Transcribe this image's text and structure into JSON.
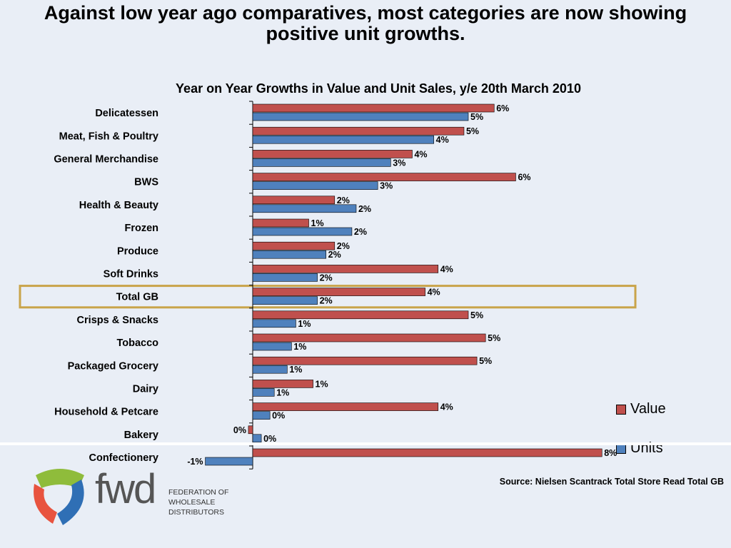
{
  "headline": {
    "line1": "Against low year ago comparatives, most categories are now showing",
    "line2": "positive unit growths."
  },
  "colors": {
    "value": "#c0504d",
    "units": "#4f81bd",
    "highlight": "#c9a44a",
    "background": "#e9eef6",
    "logo_green": "#8fbc3b",
    "logo_red": "#e8533f",
    "logo_blue": "#2f6fb5"
  },
  "chart_data": {
    "type": "bar",
    "orientation": "horizontal",
    "title": "Year on Year Growths in Value and Unit Sales, y/e 20th March 2010",
    "categories": [
      "Delicatessen",
      "Meat, Fish & Poultry",
      "General Merchandise",
      "BWS",
      "Health & Beauty",
      "Frozen",
      "Produce",
      "Soft Drinks",
      "Total GB",
      "Crisps & Snacks",
      "Tobacco",
      "Packaged Grocery",
      "Dairy",
      "Household & Petcare",
      "Bakery",
      "Confectionery"
    ],
    "series": [
      {
        "name": "Value",
        "values": [
          5.6,
          4.9,
          3.7,
          6.1,
          1.9,
          1.3,
          1.9,
          4.3,
          4.0,
          5.0,
          5.4,
          5.2,
          1.4,
          4.3,
          -0.1,
          8.1
        ],
        "labels": [
          "6%",
          "5%",
          "4%",
          "6%",
          "2%",
          "1%",
          "2%",
          "4%",
          "4%",
          "5%",
          "5%",
          "5%",
          "1%",
          "4%",
          "0%",
          "8%"
        ]
      },
      {
        "name": "Units",
        "values": [
          5.0,
          4.2,
          3.2,
          2.9,
          2.4,
          2.3,
          1.7,
          1.5,
          1.5,
          1.0,
          0.9,
          0.8,
          0.5,
          0.4,
          0.2,
          -1.1
        ],
        "labels": [
          "5%",
          "4%",
          "3%",
          "3%",
          "2%",
          "2%",
          "2%",
          "2%",
          "2%",
          "1%",
          "1%",
          "1%",
          "1%",
          "0%",
          "0%",
          "-1%"
        ]
      }
    ],
    "highlighted_category": "Total GB",
    "legend_position": "right",
    "grid": false
  },
  "source": "Source:  Nielsen Scantrack Total Store Read Total GB",
  "logo": {
    "wordmark": "fwd",
    "lines": [
      "FEDERATION OF",
      "WHOLESALE",
      "DISTRIBUTORS"
    ]
  }
}
